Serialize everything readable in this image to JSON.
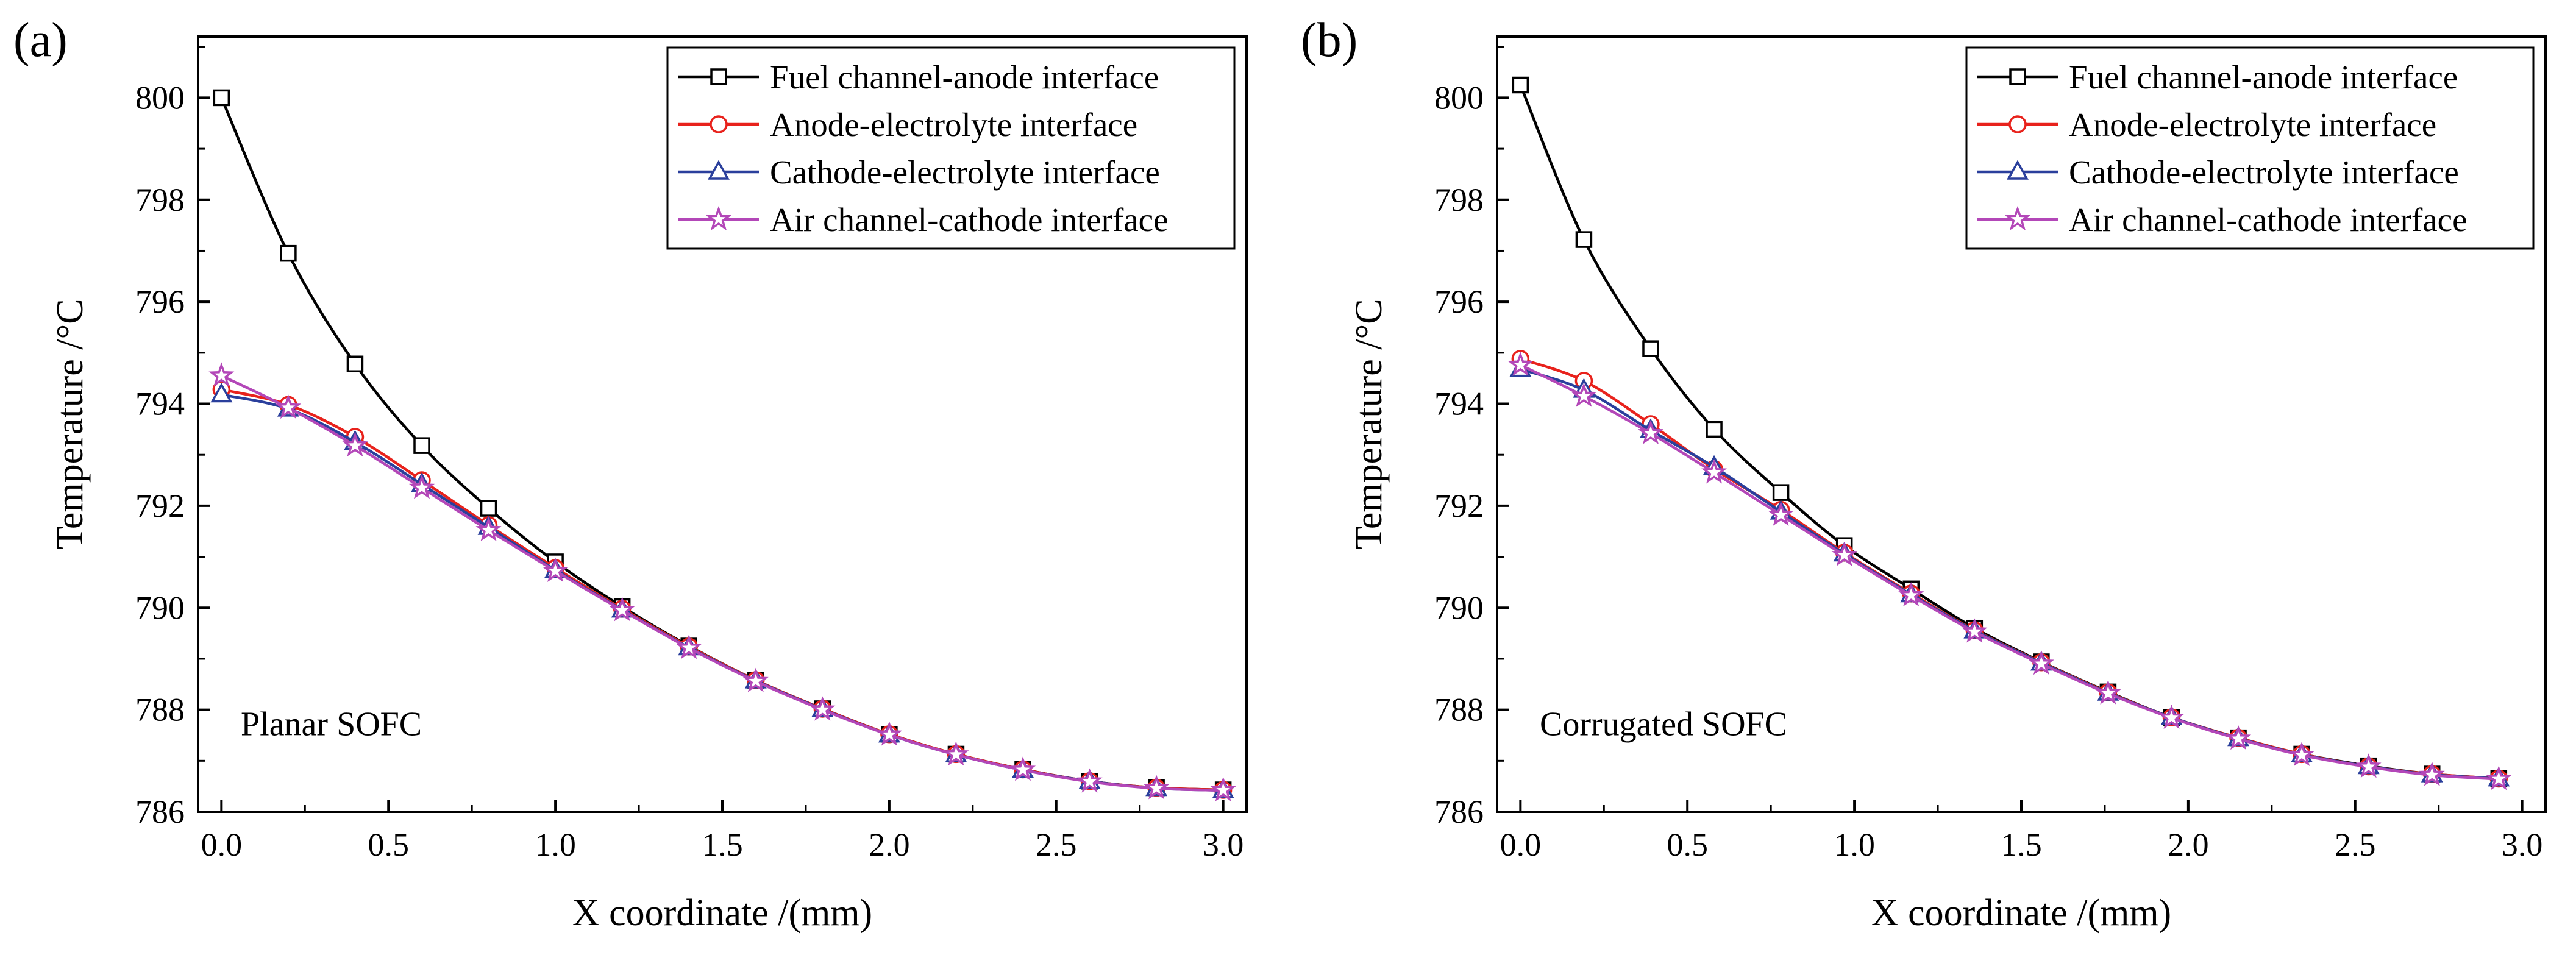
{
  "chart_data": [
    {
      "type": "line",
      "panel_label": "(a)",
      "annotation": "Planar SOFC",
      "xlabel": "X coordinate /(mm)",
      "ylabel": "Temperature /°C",
      "xlim": [
        -0.07,
        3.07
      ],
      "ylim": [
        786,
        801.2
      ],
      "xticks": [
        0.0,
        0.5,
        1.0,
        1.5,
        2.0,
        2.5,
        3.0
      ],
      "xtick_labels": [
        "0.0",
        "0.5",
        "1.0",
        "1.5",
        "2.0",
        "2.5",
        "3.0"
      ],
      "yticks": [
        786,
        788,
        790,
        792,
        794,
        796,
        798,
        800
      ],
      "ytick_labels": [
        "786",
        "788",
        "790",
        "792",
        "794",
        "796",
        "798",
        "800"
      ],
      "grid": false,
      "legend_position": "top-right",
      "x": [
        0.0,
        0.2,
        0.4,
        0.6,
        0.8,
        1.0,
        1.2,
        1.4,
        1.6,
        1.8,
        2.0,
        2.2,
        2.4,
        2.6,
        2.8,
        3.0
      ],
      "series": [
        {
          "name": "Fuel channel-anode interface",
          "color": "#000000",
          "marker": "square",
          "values": [
            800.0,
            796.95,
            794.78,
            793.18,
            791.95,
            790.9,
            790.02,
            789.25,
            788.58,
            788.02,
            787.52,
            787.13,
            786.83,
            786.6,
            786.47,
            786.43
          ]
        },
        {
          "name": "Anode-electrolyte interface",
          "color": "#e8221c",
          "marker": "circle",
          "values": [
            794.28,
            793.98,
            793.35,
            792.5,
            791.62,
            790.78,
            789.98,
            789.24,
            788.58,
            788.02,
            787.52,
            787.13,
            786.83,
            786.6,
            786.47,
            786.43
          ]
        },
        {
          "name": "Cathode-electrolyte interface",
          "color": "#2a3f9c",
          "marker": "triangle",
          "values": [
            794.18,
            793.9,
            793.25,
            792.42,
            791.58,
            790.74,
            789.96,
            789.22,
            788.57,
            788.01,
            787.51,
            787.12,
            786.82,
            786.6,
            786.46,
            786.42
          ]
        },
        {
          "name": "Air channel-cathode interface",
          "color": "#b347b8",
          "marker": "star",
          "values": [
            794.55,
            793.92,
            793.18,
            792.35,
            791.52,
            790.72,
            789.95,
            789.21,
            788.56,
            788.0,
            787.51,
            787.12,
            786.82,
            786.59,
            786.46,
            786.42
          ]
        }
      ]
    },
    {
      "type": "line",
      "panel_label": "(b)",
      "annotation": "Corrugated SOFC",
      "xlabel": "X coordinate /(mm)",
      "ylabel": "Temperature /°C",
      "xlim": [
        -0.07,
        3.07
      ],
      "ylim": [
        786,
        801.2
      ],
      "xticks": [
        0.0,
        0.5,
        1.0,
        1.5,
        2.0,
        2.5,
        3.0
      ],
      "xtick_labels": [
        "0.0",
        "0.5",
        "1.0",
        "1.5",
        "2.0",
        "2.5",
        "3.0"
      ],
      "yticks": [
        786,
        788,
        790,
        792,
        794,
        796,
        798,
        800
      ],
      "ytick_labels": [
        "786",
        "788",
        "790",
        "792",
        "794",
        "796",
        "798",
        "800"
      ],
      "grid": false,
      "legend_position": "top-right",
      "x": [
        0.0,
        0.19,
        0.39,
        0.58,
        0.78,
        0.97,
        1.17,
        1.36,
        1.56,
        1.76,
        1.95,
        2.15,
        2.34,
        2.54,
        2.73,
        2.93
      ],
      "series": [
        {
          "name": "Fuel channel-anode interface",
          "color": "#000000",
          "marker": "square",
          "values": [
            800.25,
            797.22,
            795.08,
            793.5,
            792.26,
            791.22,
            790.37,
            789.6,
            788.94,
            788.35,
            787.85,
            787.45,
            787.13,
            786.9,
            786.74,
            786.65
          ]
        },
        {
          "name": "Anode-electrolyte interface",
          "color": "#e8221c",
          "marker": "circle",
          "values": [
            794.88,
            794.45,
            793.6,
            792.72,
            791.92,
            791.08,
            790.28,
            789.56,
            788.93,
            788.34,
            787.85,
            787.45,
            787.13,
            786.89,
            786.74,
            786.65
          ]
        },
        {
          "name": "Cathode-electrolyte interface",
          "color": "#2a3f9c",
          "marker": "triangle",
          "values": [
            794.68,
            794.27,
            793.48,
            792.76,
            791.88,
            791.06,
            790.26,
            789.55,
            788.92,
            788.33,
            787.85,
            787.44,
            787.12,
            786.89,
            786.73,
            786.65
          ]
        },
        {
          "name": "Air channel-cathode interface",
          "color": "#b347b8",
          "marker": "star",
          "values": [
            794.76,
            794.15,
            793.42,
            792.65,
            791.82,
            791.03,
            790.24,
            789.53,
            788.9,
            788.32,
            787.84,
            787.43,
            787.11,
            786.88,
            786.72,
            786.64
          ]
        }
      ]
    }
  ]
}
